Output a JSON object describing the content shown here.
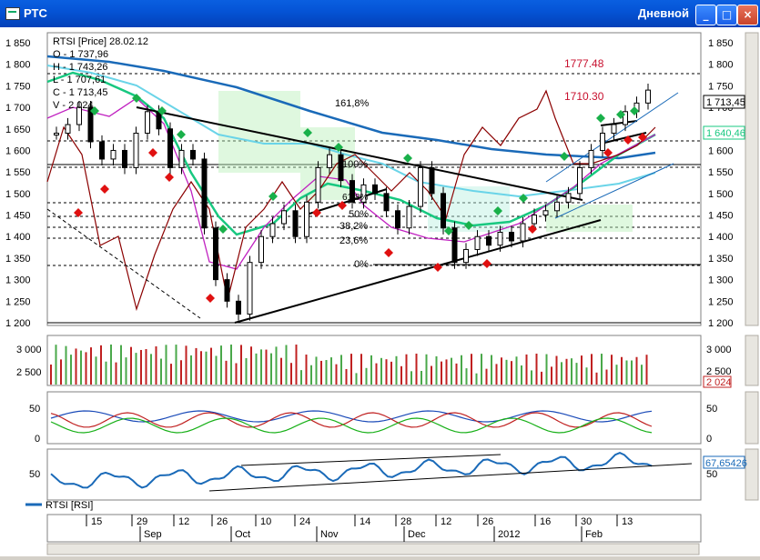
{
  "window": {
    "title": "РТС",
    "mode": "Дневной",
    "buttons": {
      "minimize": "_",
      "maximize": "□",
      "close": "×"
    }
  },
  "colors": {
    "price": "#000000",
    "bb_mid": "#1a6ab8",
    "light_blue": "#6ad4e8",
    "green": "#18c880",
    "magenta": "#c020c0",
    "darkred": "#8b0000",
    "up_marker": "#19b04a",
    "down_marker": "#e01010",
    "red_text": "#c8102e",
    "volume_up": "#4aa84a",
    "volume_down": "#c02020"
  },
  "price_panel": {
    "legend": [
      "RTSI [Price] 28.02.12",
      "O - 1 737,96",
      "H - 1 743,26",
      "L - 1 707,61",
      "C - 1 713,45",
      "V - 2 024"
    ],
    "annotations": [
      "1777.48",
      "1710.30",
      "161,8%",
      "100%",
      "50%",
      "38,2%",
      "23,6%",
      "0%",
      "61,8%"
    ],
    "last_price_label": "1 713,45",
    "ma_label": "1 640,46"
  },
  "volume_panel": {
    "ticks": [
      "3 000",
      "2 500"
    ],
    "last_label": "2 024"
  },
  "adx_panel": {
    "ticks": [
      "50",
      "0"
    ]
  },
  "rsi_panel": {
    "ticks": [
      "50"
    ],
    "last_label": "67,65426",
    "legend": "RTSI [RSI]"
  },
  "x_axis": {
    "day_labels": [
      "15",
      "29",
      "12",
      "26",
      "10",
      "24",
      "14",
      "28",
      "12",
      "26",
      "16",
      "30",
      "13"
    ],
    "month_labels": [
      "Sep",
      "Oct",
      "Nov",
      "Dec",
      "2012",
      "Feb"
    ]
  },
  "chart_data": {
    "type": "line",
    "title": "RTSI [Price] 28.02.12",
    "y_axis": {
      "ticks": [
        "1 850",
        "1 800",
        "1 750",
        "1 700",
        "1 650",
        "1 600",
        "1 550",
        "1 500",
        "1 450",
        "1 400",
        "1 350",
        "1 300",
        "1 250",
        "1 200"
      ],
      "ylim": [
        1200,
        1860
      ]
    },
    "x_ticks": [
      "15",
      "29",
      "12",
      "26",
      "10",
      "24",
      "14",
      "28",
      "12",
      "26",
      "16",
      "30",
      "13"
    ],
    "months": [
      "Sep",
      "Oct",
      "Nov",
      "Dec",
      "2012",
      "Feb"
    ],
    "series": [
      {
        "name": "RTSI [Price]",
        "open": 1737.96,
        "high": 1743.26,
        "low": 1707.61,
        "close": 1713.45,
        "volume": 2024
      },
      {
        "name": "RTSI [RSI]",
        "last": 67.65426
      }
    ]
  }
}
